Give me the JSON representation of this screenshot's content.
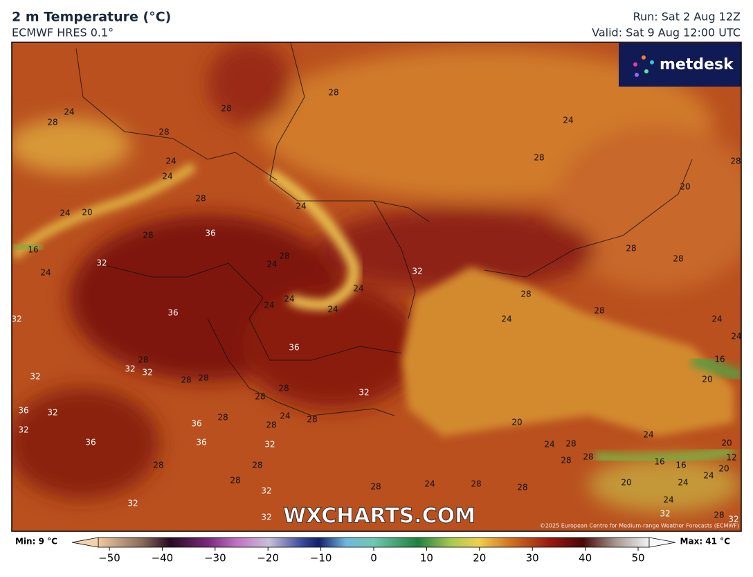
{
  "header": {
    "title": "2 m Temperature (°C)",
    "subtitle": "ECMWF HRES 0.1°",
    "run": "Run: Sat 2 Aug 12Z",
    "valid": "Valid: Sat 9 Aug 12:00 UTC"
  },
  "logo": "metdesk",
  "watermark": "WXCHARTS.COM",
  "copyright": "©2025 European Centre for Medium-range Weather Forecasts (ECMWF)",
  "contour_labels": [
    28,
    24,
    28,
    28,
    28,
    24,
    24,
    24,
    28,
    28,
    28,
    24,
    20,
    24,
    20,
    28,
    36,
    16,
    28,
    24,
    32,
    24,
    32,
    28,
    28,
    24,
    24,
    24,
    24,
    28,
    28,
    36,
    32,
    24,
    24,
    24,
    36,
    28,
    16,
    32,
    32,
    32,
    28,
    28,
    20,
    28,
    32,
    28,
    36,
    32,
    24,
    28,
    20,
    36,
    28,
    28,
    32,
    24,
    36,
    36,
    32,
    24,
    28,
    20,
    28,
    28,
    16,
    16,
    12,
    28,
    28,
    24,
    20,
    20,
    24,
    28,
    28,
    24,
    28,
    28,
    32,
    24,
    32,
    32,
    32,
    28,
    32
  ],
  "legend": {
    "min": "Min: 9 °C",
    "max": "Max: 41 °C",
    "lim": [
      -50,
      50
    ],
    "ticks": [
      {
        "value": -50,
        "label": "−50"
      },
      {
        "value": -40,
        "label": "−40"
      },
      {
        "value": -30,
        "label": "−30"
      },
      {
        "value": -20,
        "label": "−20"
      },
      {
        "value": -10,
        "label": "−10"
      },
      0,
      10,
      20,
      30,
      40,
      50
    ]
  }
}
